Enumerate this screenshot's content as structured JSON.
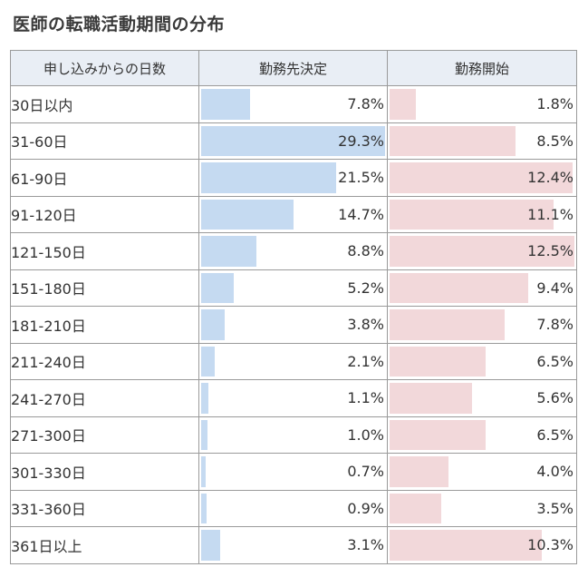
{
  "title": "医師の転職活動期間の分布",
  "chart_data": {
    "type": "table",
    "title": "医師の転職活動期間の分布",
    "columns": [
      "申し込みからの日数",
      "勤務先決定",
      "勤務開始"
    ],
    "categories": [
      "30日以内",
      "31-60日",
      "61-90日",
      "91-120日",
      "121-150日",
      "151-180日",
      "181-210日",
      "211-240日",
      "241-270日",
      "271-300日",
      "301-330日",
      "331-360日",
      "361日以上"
    ],
    "series": [
      {
        "name": "勤務先決定",
        "color": "#c5daf1",
        "values": [
          7.8,
          29.3,
          21.5,
          14.7,
          8.8,
          5.2,
          3.8,
          2.1,
          1.1,
          1.0,
          0.7,
          0.9,
          3.1
        ]
      },
      {
        "name": "勤務開始",
        "color": "#f2d8da",
        "values": [
          1.8,
          8.5,
          12.4,
          11.1,
          12.5,
          9.4,
          7.8,
          6.5,
          5.6,
          6.5,
          4.0,
          3.5,
          10.3
        ]
      }
    ],
    "unit": "%"
  }
}
